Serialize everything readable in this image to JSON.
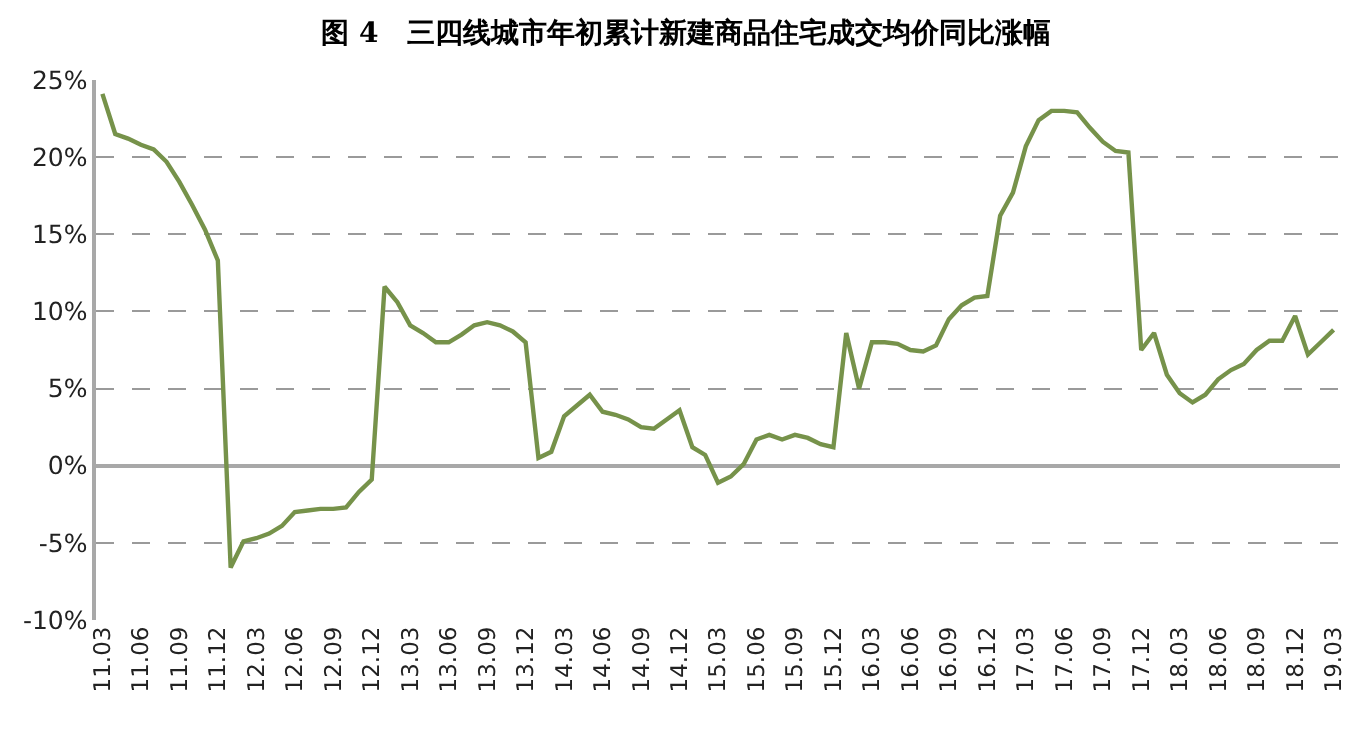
{
  "chart_data": {
    "type": "line",
    "title": "图 4　三四线城市年初累计新建商品住宅成交均价同比涨幅",
    "categories": [
      "11.03",
      null,
      null,
      "11.06",
      null,
      null,
      "11.09",
      null,
      null,
      "11.12",
      null,
      null,
      "12.03",
      null,
      null,
      "12.06",
      null,
      null,
      "12.09",
      null,
      null,
      "12.12",
      null,
      null,
      "13.03",
      null,
      null,
      "13.06",
      null,
      null,
      "13.09",
      null,
      null,
      "13.12",
      null,
      null,
      "14.03",
      null,
      null,
      "14.06",
      null,
      null,
      "14.09",
      null,
      null,
      "14.12",
      null,
      null,
      "15.03",
      null,
      null,
      "15.06",
      null,
      null,
      "15.09",
      null,
      null,
      "15.12",
      null,
      null,
      "16.03",
      null,
      null,
      "16.06",
      null,
      null,
      "16.09",
      null,
      null,
      "16.12",
      null,
      null,
      "17.03",
      null,
      null,
      "17.06",
      null,
      null,
      "17.09",
      null,
      null,
      "17.12",
      null,
      null,
      "18.03",
      null,
      null,
      "18.06",
      null,
      null,
      "18.09",
      null,
      null,
      "18.12",
      null,
      null,
      "19.03"
    ],
    "series": [
      {
        "color": "#76924a",
        "values": [
          24.1,
          21.5,
          21.2,
          20.8,
          20.5,
          19.7,
          18.4,
          16.9,
          15.3,
          13.3,
          -6.6,
          -4.9,
          -4.7,
          -4.4,
          -3.9,
          -3.0,
          -2.9,
          -2.8,
          -2.8,
          -2.7,
          -1.7,
          -0.9,
          11.6,
          10.6,
          9.1,
          8.6,
          8.0,
          8.0,
          8.5,
          9.1,
          9.3,
          9.1,
          8.7,
          8.0,
          0.5,
          0.9,
          3.2,
          3.9,
          4.6,
          3.5,
          3.3,
          3.0,
          2.5,
          2.4,
          3.0,
          3.6,
          1.2,
          0.7,
          -1.1,
          -0.7,
          0.1,
          1.7,
          2.0,
          1.7,
          2.0,
          1.8,
          1.4,
          1.2,
          8.6,
          5.0,
          8.0,
          8.0,
          7.9,
          7.5,
          7.4,
          7.8,
          9.5,
          10.4,
          10.9,
          11.0,
          16.2,
          17.7,
          20.7,
          22.4,
          23.0,
          23.0,
          22.9,
          21.9,
          21.0,
          20.4,
          20.3,
          7.5,
          8.6,
          5.9,
          4.7,
          4.1,
          4.6,
          5.6,
          6.2,
          6.6,
          7.5,
          8.1,
          8.1,
          9.7,
          7.2,
          8.0,
          8.8
        ]
      }
    ],
    "ylim": [
      -10,
      25
    ],
    "yticks": [
      {
        "value": -10,
        "label": "-10%"
      },
      {
        "value": -5,
        "label": "-5%"
      },
      {
        "value": 0,
        "label": "0%"
      },
      {
        "value": 5,
        "label": "5%"
      },
      {
        "value": 10,
        "label": "10%"
      },
      {
        "value": 15,
        "label": "15%"
      },
      {
        "value": 20,
        "label": "20%"
      },
      {
        "value": 25,
        "label": "25%"
      }
    ],
    "grid": "y",
    "marker": "none",
    "line_style": "solid"
  }
}
